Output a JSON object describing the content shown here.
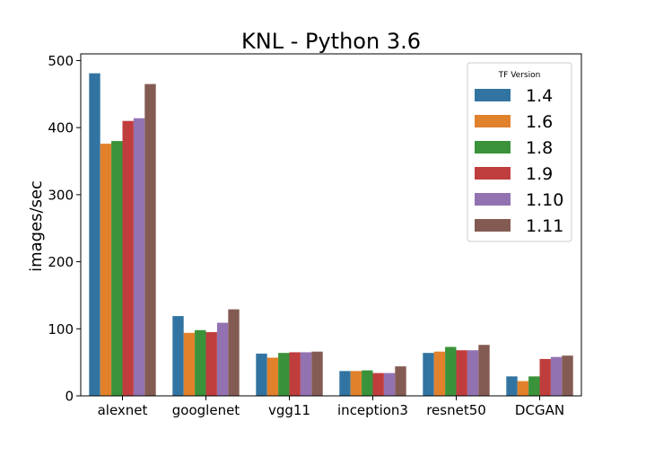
{
  "chart_data": {
    "type": "bar",
    "title": "KNL - Python 3.6",
    "xlabel": "",
    "ylabel": "images/sec",
    "ylim": [
      0,
      510
    ],
    "yticks": [
      0,
      100,
      200,
      300,
      400,
      500
    ],
    "categories": [
      "alexnet",
      "googlenet",
      "vgg11",
      "inception3",
      "resnet50",
      "DCGAN"
    ],
    "legend": {
      "title": "TF Version",
      "placement": "top-right"
    },
    "series": [
      {
        "name": "1.4",
        "color": "#3274a1",
        "values": [
          481,
          119,
          63,
          37,
          64,
          29
        ]
      },
      {
        "name": "1.6",
        "color": "#e1812c",
        "values": [
          376,
          94,
          57,
          37,
          66,
          22
        ]
      },
      {
        "name": "1.8",
        "color": "#3a923a",
        "values": [
          380,
          98,
          64,
          38,
          73,
          29
        ]
      },
      {
        "name": "1.9",
        "color": "#c03d3e",
        "values": [
          410,
          95,
          65,
          34,
          68,
          55
        ]
      },
      {
        "name": "1.10",
        "color": "#9372b2",
        "values": [
          414,
          109,
          65,
          34,
          68,
          58
        ]
      },
      {
        "name": "1.11",
        "color": "#845b53",
        "values": [
          465,
          129,
          66,
          44,
          76,
          60
        ]
      }
    ]
  }
}
